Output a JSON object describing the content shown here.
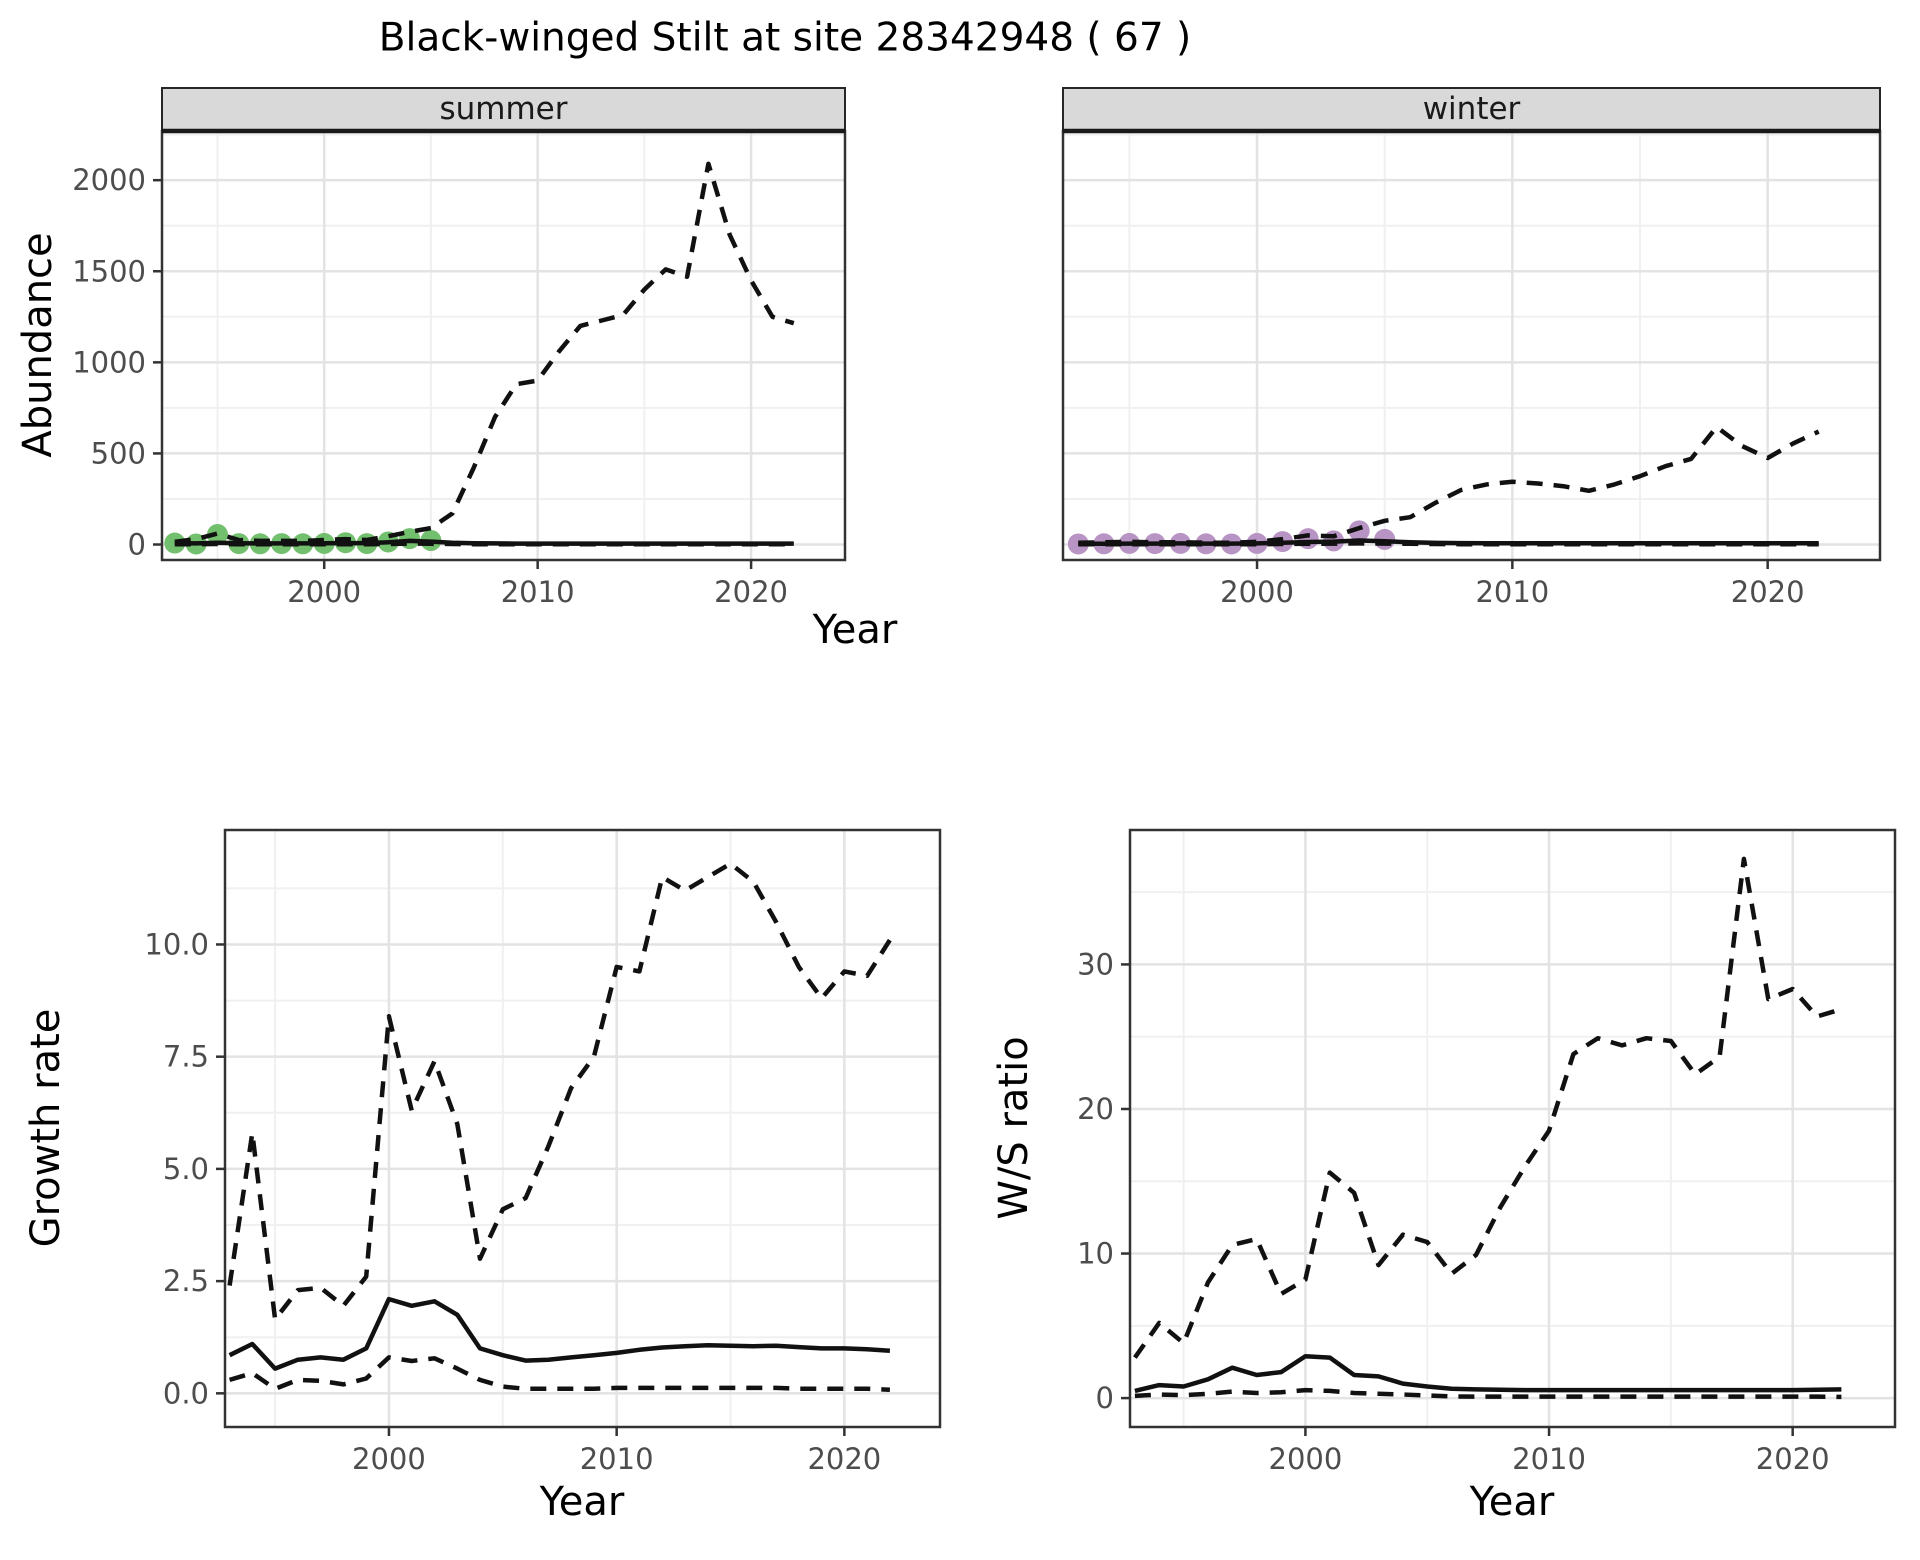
{
  "title": "Black-winged Stilt at site 28342948 ( 67 )",
  "axes": {
    "abundance_label": "Abundance",
    "top_x_label": "Year",
    "growth_label": "Growth rate",
    "growth_x_label": "Year",
    "ws_label": "W/S ratio",
    "ws_x_label": "Year"
  },
  "colors": {
    "summer_point": "#72bf6d",
    "winter_point": "#b894c4",
    "line": "#111111",
    "grid_major": "#e3e3e3",
    "grid_minor": "#f0f0f0",
    "panel_border": "#333333",
    "strip_bg": "#d9d9d9",
    "strip_border": "#262626",
    "strip_text": "#1a1a1a",
    "tick_text": "#4d4d4d",
    "tick_mark": "#333333"
  },
  "chart_data": [
    {
      "type": "line",
      "facet_label": "summer",
      "ylabel": "Abundance",
      "xlabel": "Year",
      "xlim": [
        1992.4,
        2024.4
      ],
      "ylim": [
        -85,
        2270
      ],
      "x_ticks": [
        2000,
        2010,
        2020
      ],
      "x_tick_labels": [
        "2000",
        "2010",
        "2020"
      ],
      "x_minor": [
        1995,
        2005,
        2015
      ],
      "y_ticks": [
        0,
        500,
        1000,
        1500,
        2000
      ],
      "y_tick_labels": [
        "0",
        "500",
        "1000",
        "1500",
        "2000"
      ],
      "y_minor": [
        250,
        750,
        1250,
        1750,
        2250
      ],
      "y_axis_labels": true,
      "x": [
        1993,
        1994,
        1995,
        1996,
        1997,
        1998,
        1999,
        2000,
        2001,
        2002,
        2003,
        2004,
        2005,
        2006,
        2007,
        2008,
        2009,
        2010,
        2011,
        2012,
        2013,
        2014,
        2015,
        2016,
        2017,
        2018,
        2019,
        2020,
        2021,
        2022
      ],
      "series": [
        {
          "name": "lower_ci",
          "style": "dashed",
          "values": [
            2,
            2,
            3,
            2,
            2,
            2,
            2,
            2,
            2,
            2,
            3,
            5,
            4,
            3,
            2,
            2,
            2,
            2,
            2,
            2,
            2,
            2,
            2,
            2,
            2,
            2,
            2,
            2,
            2,
            2
          ]
        },
        {
          "name": "fit",
          "style": "solid",
          "values": [
            8,
            6,
            10,
            7,
            6,
            6,
            6,
            7,
            8,
            8,
            12,
            20,
            16,
            10,
            7,
            6,
            5,
            5,
            5,
            5,
            5,
            5,
            5,
            5,
            5,
            5,
            5,
            5,
            5,
            5
          ]
        },
        {
          "name": "upper_ci",
          "style": "dashed",
          "values": [
            15,
            30,
            60,
            25,
            20,
            20,
            20,
            25,
            30,
            25,
            45,
            70,
            90,
            170,
            420,
            700,
            880,
            900,
            1060,
            1200,
            1230,
            1260,
            1400,
            1510,
            1470,
            2090,
            1700,
            1450,
            1250,
            1215
          ]
        }
      ],
      "points": {
        "name": "observed_summer",
        "color": "#72bf6d",
        "x": [
          1993,
          1994,
          1995,
          1996,
          1997,
          1998,
          1999,
          2000,
          2001,
          2002,
          2003,
          2004,
          2005
        ],
        "y": [
          8,
          3,
          55,
          5,
          4,
          5,
          4,
          6,
          10,
          5,
          14,
          32,
          22
        ]
      }
    },
    {
      "type": "line",
      "facet_label": "winter",
      "ylabel": "Abundance",
      "xlabel": "Year",
      "xlim": [
        1992.4,
        2024.4
      ],
      "ylim": [
        -85,
        2270
      ],
      "x_ticks": [
        2000,
        2010,
        2020
      ],
      "x_tick_labels": [
        "2000",
        "2010",
        "2020"
      ],
      "x_minor": [
        1995,
        2005,
        2015
      ],
      "y_ticks": [
        0,
        500,
        1000,
        1500,
        2000
      ],
      "y_tick_labels": [
        "0",
        "500",
        "1000",
        "1500",
        "2000"
      ],
      "y_minor": [
        250,
        750,
        1250,
        1750,
        2250
      ],
      "y_axis_labels": false,
      "x": [
        1993,
        1994,
        1995,
        1996,
        1997,
        1998,
        1999,
        2000,
        2001,
        2002,
        2003,
        2004,
        2005,
        2006,
        2007,
        2008,
        2009,
        2010,
        2011,
        2012,
        2013,
        2014,
        2015,
        2016,
        2017,
        2018,
        2019,
        2020,
        2021,
        2022
      ],
      "series": [
        {
          "name": "lower_ci",
          "style": "dashed",
          "values": [
            2,
            2,
            2,
            2,
            2,
            2,
            2,
            2,
            3,
            4,
            5,
            6,
            5,
            4,
            3,
            2,
            2,
            2,
            2,
            2,
            2,
            2,
            2,
            2,
            2,
            2,
            2,
            2,
            2,
            2
          ]
        },
        {
          "name": "fit",
          "style": "solid",
          "values": [
            5,
            4,
            5,
            5,
            6,
            5,
            5,
            6,
            10,
            14,
            16,
            22,
            18,
            12,
            9,
            8,
            7,
            7,
            7,
            7,
            7,
            7,
            7,
            7,
            7,
            7,
            7,
            7,
            7,
            7
          ]
        },
        {
          "name": "upper_ci",
          "style": "dashed",
          "values": [
            10,
            12,
            15,
            12,
            12,
            10,
            10,
            15,
            30,
            50,
            45,
            90,
            130,
            150,
            230,
            300,
            330,
            345,
            335,
            320,
            295,
            330,
            375,
            430,
            470,
            645,
            540,
            475,
            555,
            620
          ]
        }
      ],
      "points": {
        "name": "observed_winter",
        "color": "#b894c4",
        "x": [
          1993,
          1994,
          1995,
          1996,
          1997,
          1998,
          1999,
          2000,
          2001,
          2002,
          2003,
          2004,
          2005
        ],
        "y": [
          3,
          4,
          6,
          5,
          6,
          4,
          3,
          6,
          16,
          32,
          20,
          75,
          28
        ]
      }
    },
    {
      "type": "line",
      "facet_label": null,
      "ylabel": "Growth rate",
      "xlabel": "Year",
      "xlim": [
        1992.8,
        2024.2
      ],
      "ylim": [
        -0.75,
        12.55
      ],
      "x_ticks": [
        2000,
        2010,
        2020
      ],
      "x_tick_labels": [
        "2000",
        "2010",
        "2020"
      ],
      "x_minor": [
        1995,
        2005,
        2015
      ],
      "y_ticks": [
        0,
        2.5,
        5,
        7.5,
        10
      ],
      "y_tick_labels": [
        "0.0",
        "2.5",
        "5.0",
        "7.5",
        "10.0"
      ],
      "y_minor": [
        1.25,
        3.75,
        6.25,
        8.75,
        11.25
      ],
      "y_axis_labels": true,
      "x": [
        1993,
        1994,
        1995,
        1996,
        1997,
        1998,
        1999,
        2000,
        2001,
        2002,
        2003,
        2004,
        2005,
        2006,
        2007,
        2008,
        2009,
        2010,
        2011,
        2012,
        2013,
        2014,
        2015,
        2016,
        2017,
        2018,
        2019,
        2020,
        2021,
        2022
      ],
      "series": [
        {
          "name": "lower_ci",
          "style": "dashed",
          "values": [
            0.3,
            0.45,
            0.1,
            0.3,
            0.28,
            0.2,
            0.33,
            0.8,
            0.72,
            0.78,
            0.55,
            0.3,
            0.15,
            0.1,
            0.1,
            0.1,
            0.1,
            0.12,
            0.12,
            0.12,
            0.12,
            0.12,
            0.12,
            0.12,
            0.12,
            0.1,
            0.1,
            0.1,
            0.1,
            0.08
          ]
        },
        {
          "name": "fit",
          "style": "solid",
          "values": [
            0.85,
            1.1,
            0.55,
            0.75,
            0.8,
            0.75,
            1.0,
            2.1,
            1.95,
            2.05,
            1.75,
            1.0,
            0.85,
            0.73,
            0.75,
            0.8,
            0.85,
            0.9,
            0.97,
            1.02,
            1.05,
            1.07,
            1.06,
            1.05,
            1.06,
            1.03,
            1.0,
            1.0,
            0.98,
            0.95
          ]
        },
        {
          "name": "upper_ci",
          "style": "dashed",
          "values": [
            2.4,
            5.8,
            1.65,
            2.3,
            2.35,
            1.95,
            2.6,
            8.4,
            6.3,
            7.4,
            6.0,
            3.0,
            4.1,
            4.35,
            5.5,
            6.8,
            7.5,
            9.5,
            9.4,
            11.5,
            11.2,
            11.5,
            11.8,
            11.4,
            10.5,
            9.5,
            8.8,
            9.4,
            9.3,
            10.1
          ]
        }
      ],
      "points": null
    },
    {
      "type": "line",
      "facet_label": null,
      "ylabel": "W/S ratio",
      "xlabel": "Year",
      "xlim": [
        1992.8,
        2024.2
      ],
      "ylim": [
        -2.0,
        39.3
      ],
      "x_ticks": [
        2000,
        2010,
        2020
      ],
      "x_tick_labels": [
        "2000",
        "2010",
        "2020"
      ],
      "x_minor": [
        1995,
        2005,
        2015
      ],
      "y_ticks": [
        0,
        10,
        20,
        30
      ],
      "y_tick_labels": [
        "0",
        "10",
        "20",
        "30"
      ],
      "y_minor": [
        5,
        15,
        25,
        35
      ],
      "y_axis_labels": true,
      "x": [
        1993,
        1994,
        1995,
        1996,
        1997,
        1998,
        1999,
        2000,
        2001,
        2002,
        2003,
        2004,
        2005,
        2006,
        2007,
        2008,
        2009,
        2010,
        2011,
        2012,
        2013,
        2014,
        2015,
        2016,
        2017,
        2018,
        2019,
        2020,
        2021,
        2022
      ],
      "series": [
        {
          "name": "lower_ci",
          "style": "dashed",
          "values": [
            0.15,
            0.25,
            0.2,
            0.3,
            0.45,
            0.35,
            0.4,
            0.55,
            0.5,
            0.35,
            0.3,
            0.25,
            0.18,
            0.12,
            0.1,
            0.1,
            0.1,
            0.1,
            0.1,
            0.1,
            0.1,
            0.1,
            0.1,
            0.1,
            0.1,
            0.1,
            0.1,
            0.1,
            0.1,
            0.08
          ]
        },
        {
          "name": "fit",
          "style": "solid",
          "values": [
            0.5,
            0.9,
            0.8,
            1.3,
            2.1,
            1.6,
            1.8,
            2.9,
            2.8,
            1.6,
            1.5,
            1.0,
            0.8,
            0.65,
            0.6,
            0.58,
            0.55,
            0.55,
            0.55,
            0.55,
            0.55,
            0.55,
            0.55,
            0.55,
            0.55,
            0.55,
            0.55,
            0.55,
            0.58,
            0.6
          ]
        },
        {
          "name": "upper_ci",
          "style": "dashed",
          "values": [
            2.8,
            5.2,
            3.8,
            8.0,
            10.6,
            11.0,
            7.2,
            8.2,
            15.6,
            14.2,
            9.2,
            11.3,
            10.8,
            8.6,
            9.9,
            13.2,
            16.0,
            18.5,
            23.8,
            24.9,
            24.4,
            24.9,
            24.7,
            22.4,
            23.6,
            37.3,
            27.6,
            28.3,
            26.4,
            26.9
          ]
        }
      ],
      "points": null
    }
  ]
}
